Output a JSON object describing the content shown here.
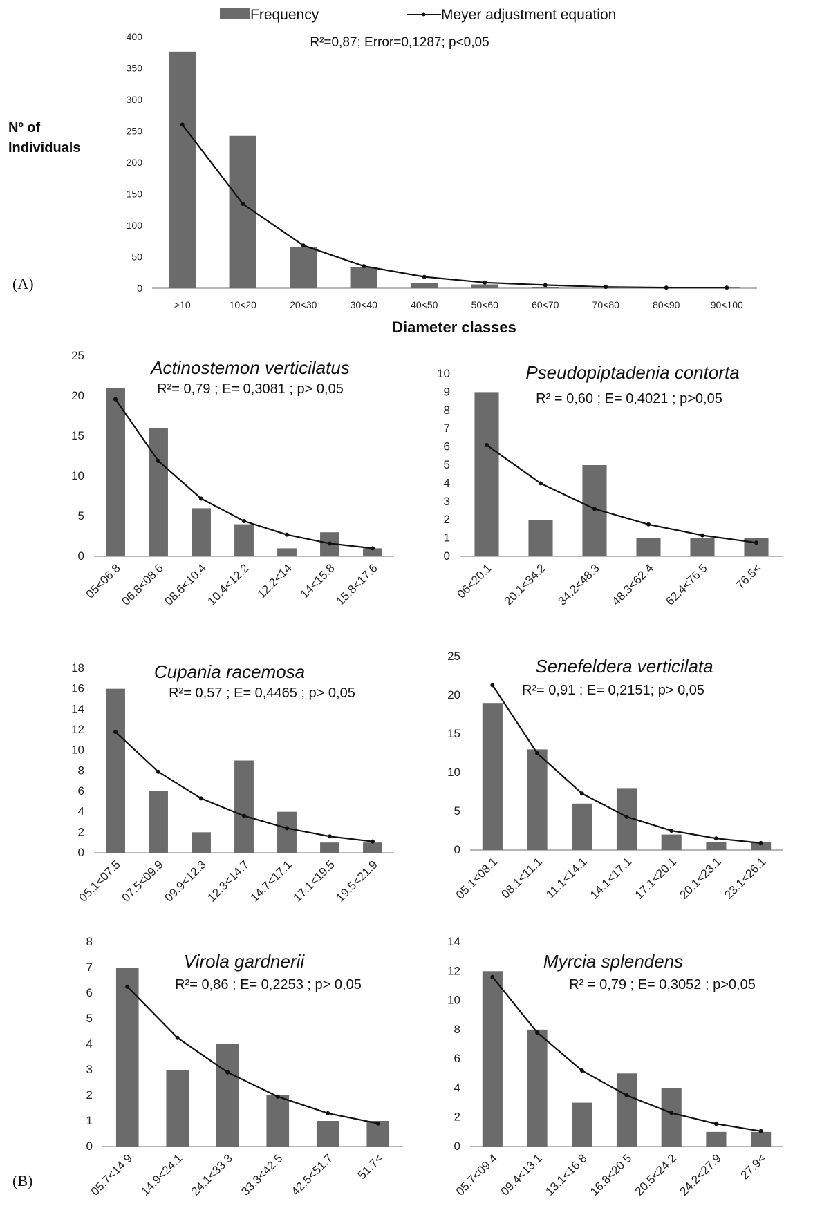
{
  "panel_labels": {
    "a": "(A)",
    "b": "(B)"
  },
  "legend": {
    "bar_label": "Frequency",
    "line_label": "Meyer adjustment equation"
  },
  "colors": {
    "bar": "#6b6b6b",
    "line": "#111111",
    "axis": "#8a8a8a"
  },
  "chart_data": [
    {
      "id": "main",
      "type": "bar",
      "subtitle": "R²=0,87; Error=0,1287; p<0,05",
      "xlabel": "Diameter classes",
      "ylabel": [
        "Nº of",
        "Individuals"
      ],
      "categories": [
        ">10",
        "10<20",
        "20<30",
        "30<40",
        "40<50",
        "50<60",
        "60<70",
        "70<80",
        "80<90",
        "90<100"
      ],
      "ylim": [
        0,
        400
      ],
      "yticks": [
        0,
        50,
        100,
        150,
        200,
        250,
        300,
        350,
        400
      ],
      "series": [
        {
          "name": "Frequency",
          "kind": "bar",
          "values": [
            376,
            242,
            65,
            34,
            8,
            6,
            2,
            1,
            1,
            1
          ]
        },
        {
          "name": "Meyer adjustment equation",
          "kind": "line",
          "values": [
            260,
            134,
            68,
            35,
            18,
            9,
            5,
            2,
            1,
            1
          ]
        }
      ]
    },
    {
      "id": "actinostemon",
      "type": "bar",
      "title": "Actinostemon verticilatus",
      "subtitle": "R²= 0,79 ; E= 0,3081 ; p> 0,05",
      "categories": [
        "05<06.8",
        "06.8<08.6",
        "08.6<10.4",
        "10.4<12.2",
        "12.2<14",
        "14<15.8",
        "15.8<17.6"
      ],
      "ylim": [
        0,
        25
      ],
      "yticks": [
        0,
        5,
        10,
        15,
        20,
        25
      ],
      "series": [
        {
          "kind": "bar",
          "values": [
            21,
            16,
            6,
            4,
            1,
            3,
            1
          ]
        },
        {
          "kind": "line",
          "values": [
            19.6,
            11.9,
            7.2,
            4.4,
            2.7,
            1.6,
            1.0
          ]
        }
      ]
    },
    {
      "id": "pseudopiptadenia",
      "type": "bar",
      "title": "Pseudopiptadenia contorta",
      "subtitle": "R² = 0,60 ; E= 0,4021 ; p>0,05",
      "categories": [
        "06<20.1",
        "20.1<34.2",
        "34.2<48.3",
        "48.3<62.4",
        "62.4<76.5",
        "76.5<"
      ],
      "ylim": [
        0,
        10
      ],
      "yticks": [
        0,
        1,
        2,
        3,
        4,
        5,
        6,
        7,
        8,
        9,
        10
      ],
      "series": [
        {
          "kind": "bar",
          "values": [
            9,
            2,
            5,
            1,
            1,
            1
          ]
        },
        {
          "kind": "line",
          "values": [
            6.1,
            4.0,
            2.6,
            1.75,
            1.15,
            0.75
          ]
        }
      ]
    },
    {
      "id": "cupania",
      "type": "bar",
      "title": "Cupania racemosa",
      "subtitle": "R²= 0,57 ; E= 0,4465 ; p> 0,05",
      "categories": [
        "05.1<07.5",
        "07.5<09.9",
        "09.9<12.3",
        "12.3<14.7",
        "14.7<17.1",
        "17.1<19.5",
        "19.5<21.9"
      ],
      "ylim": [
        0,
        18
      ],
      "yticks": [
        0,
        2,
        4,
        6,
        8,
        10,
        12,
        14,
        16,
        18
      ],
      "series": [
        {
          "kind": "bar",
          "values": [
            16,
            6,
            2,
            9,
            4,
            1,
            1
          ]
        },
        {
          "kind": "line",
          "values": [
            11.8,
            7.9,
            5.3,
            3.6,
            2.4,
            1.6,
            1.1
          ]
        }
      ]
    },
    {
      "id": "senefeldera",
      "type": "bar",
      "title": "Senefeldera verticilata",
      "subtitle": "R²= 0,91 ; E= 0,2151; p> 0,05",
      "categories": [
        "05.1<08.1",
        "08.1<11.1",
        "11.1<14.1",
        "14.1<17.1",
        "17.1<20.1",
        "20.1<23.1",
        "23.1<26.1"
      ],
      "ylim": [
        0,
        25
      ],
      "yticks": [
        0,
        5,
        10,
        15,
        20,
        25
      ],
      "series": [
        {
          "kind": "bar",
          "values": [
            19,
            13,
            6,
            8,
            2,
            1,
            1
          ]
        },
        {
          "kind": "line",
          "values": [
            21.3,
            12.5,
            7.3,
            4.3,
            2.5,
            1.5,
            0.9
          ]
        }
      ]
    },
    {
      "id": "virola",
      "type": "bar",
      "title": "Virola gardnerii",
      "subtitle": "R²= 0,86 ; E= 0,2253 ; p> 0,05",
      "categories": [
        "05.7<14.9",
        "14.9<24.1",
        "24.1<33.3",
        "33.3<42.5",
        "42.5<51.7",
        "51.7<"
      ],
      "ylim": [
        0,
        8
      ],
      "yticks": [
        0,
        1,
        2,
        3,
        4,
        5,
        6,
        7,
        8
      ],
      "series": [
        {
          "kind": "bar",
          "values": [
            7,
            3,
            4,
            2,
            1,
            1
          ]
        },
        {
          "kind": "line",
          "values": [
            6.25,
            4.25,
            2.9,
            1.95,
            1.3,
            0.9
          ]
        }
      ]
    },
    {
      "id": "myrcia",
      "type": "bar",
      "title": "Myrcia splendens",
      "subtitle": "R² = 0,79 ; E= 0,3052 ; p>0,05",
      "categories": [
        "05.7<09.4",
        "09.4<13.1",
        "13.1<16.8",
        "16.8<20.5",
        "20.5<24.2",
        "24.2<27.9",
        "27.9<"
      ],
      "ylim": [
        0,
        14
      ],
      "yticks": [
        0,
        2,
        4,
        6,
        8,
        10,
        12,
        14
      ],
      "series": [
        {
          "kind": "bar",
          "values": [
            12,
            8,
            3,
            5,
            4,
            1,
            1
          ]
        },
        {
          "kind": "line",
          "values": [
            11.6,
            7.8,
            5.2,
            3.5,
            2.3,
            1.55,
            1.05
          ]
        }
      ]
    }
  ]
}
